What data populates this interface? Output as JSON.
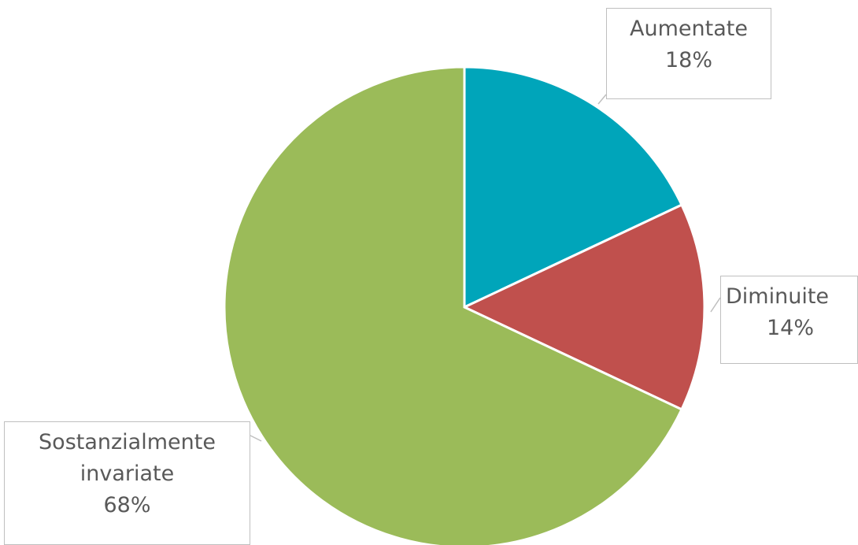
{
  "chart_data": {
    "type": "pie",
    "categories": [
      "Aumentate",
      "Diminuite",
      "Sostanzialmente invariate"
    ],
    "values": [
      18,
      14,
      68
    ],
    "value_labels": [
      "18%",
      "14%",
      "68%"
    ],
    "colors": [
      "#00a5ba",
      "#c0504d",
      "#9bbb59"
    ]
  }
}
